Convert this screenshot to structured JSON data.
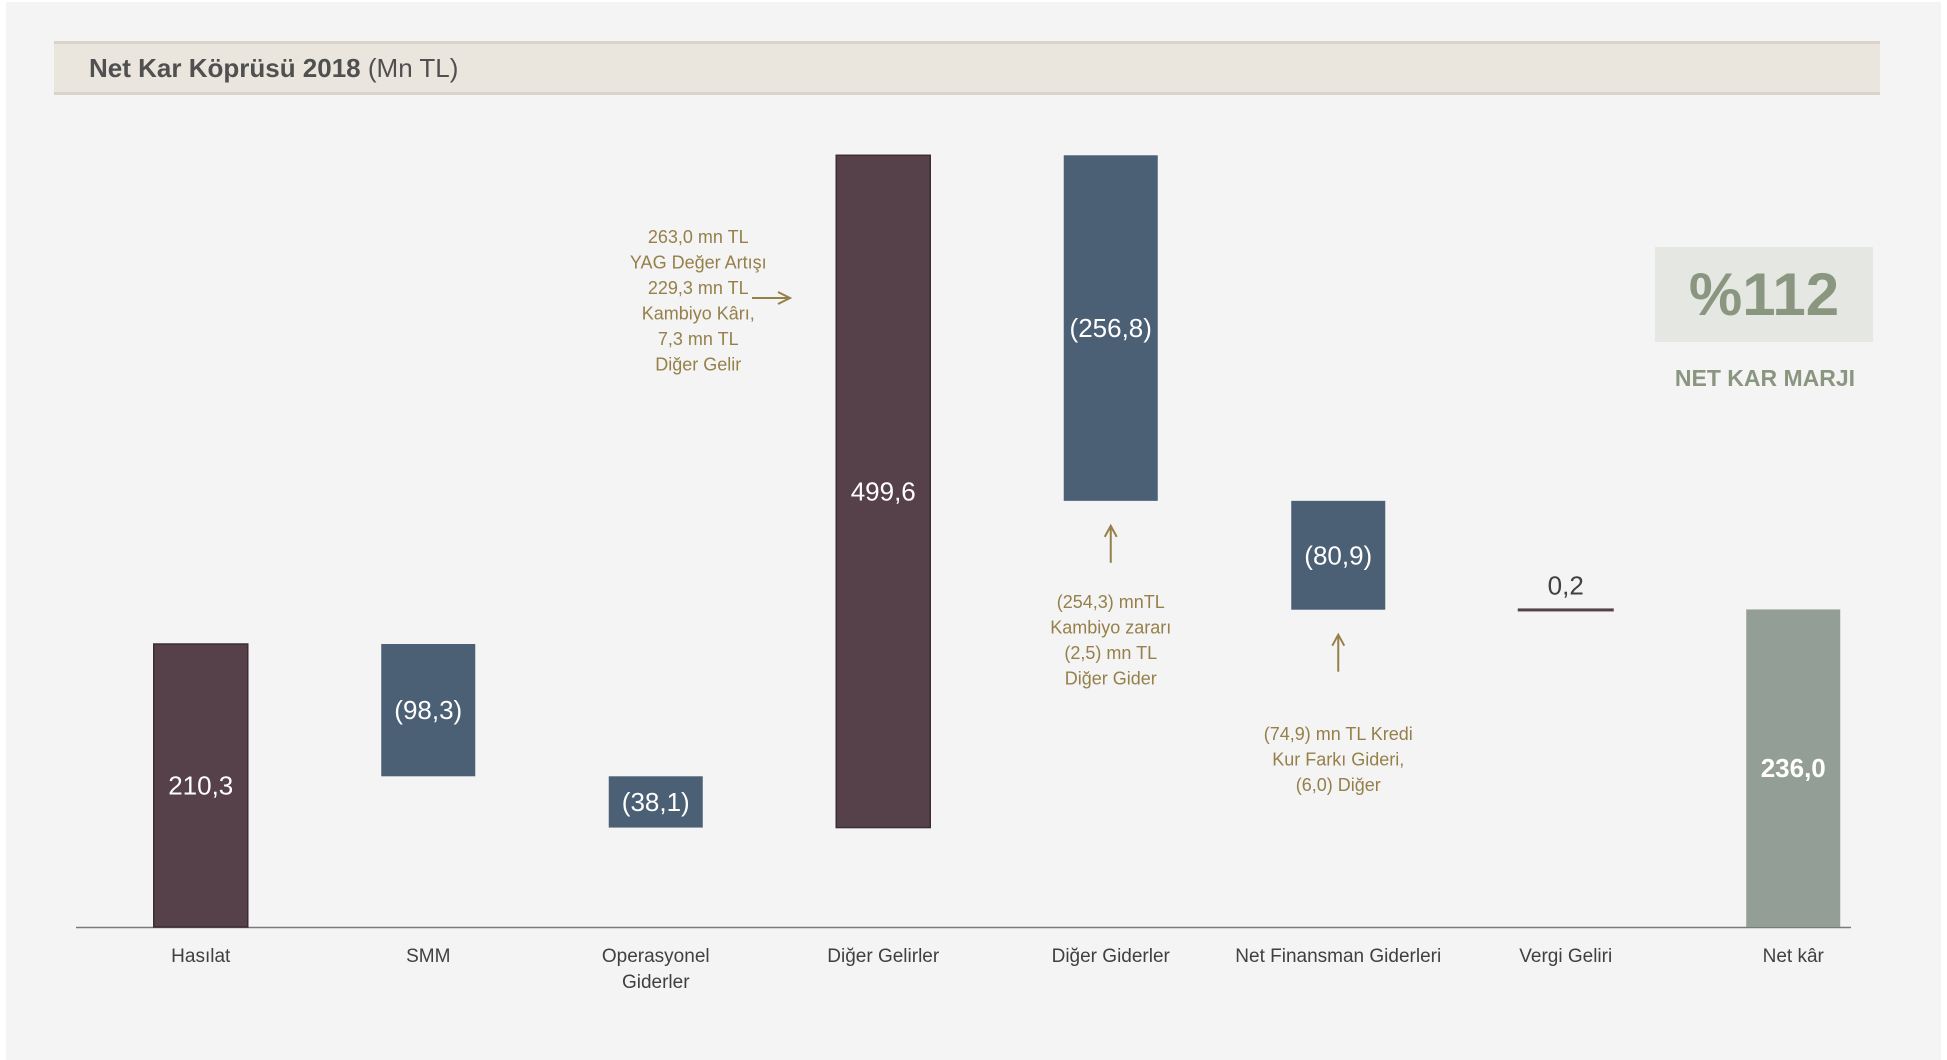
{
  "title": {
    "main": "Net Kar Köprüsü 2018",
    "unit": "(Mn TL)"
  },
  "chart_data": {
    "type": "bar",
    "subtype": "waterfall",
    "categories": [
      "Hasılat",
      "SMM",
      "Operasyonel Giderler",
      "Diğer Gelirler",
      "Diğer Giderler",
      "Net Finansman Giderleri",
      "Vergi Geliri",
      "Net kâr"
    ],
    "values": [
      210.3,
      -98.3,
      -38.1,
      499.6,
      -256.8,
      -80.9,
      0.2,
      236.0
    ],
    "value_labels": [
      "210,3",
      "(98,3)",
      "(38,1)",
      "499,6",
      "(256,8)",
      "(80,9)",
      "0,2",
      "236,0"
    ],
    "measures": [
      "absolute",
      "relative",
      "relative",
      "relative",
      "relative",
      "relative",
      "relative",
      "total"
    ],
    "colors": [
      "#56414a",
      "#4b5f75",
      "#4b5f75",
      "#56414a",
      "#4b5f75",
      "#4b5f75",
      "#56414a",
      "#939f96"
    ],
    "ylim": [
      0,
      570
    ],
    "grid": false,
    "legend": "none",
    "annotations": [
      {
        "lines": [
          "263,0 mn TL",
          "YAG Değer Artışı",
          "229,3 mn TL",
          "Kambiyo Kârı,",
          "7,3 mn TL",
          "Diğer Gelir"
        ],
        "arrow": "right",
        "target": "Diğer Gelirler"
      },
      {
        "lines": [
          "(254,3) mnTL",
          "Kambiyo zararı",
          "(2,5) mn TL",
          "Diğer Gider"
        ],
        "arrow": "up",
        "target": "Diğer Giderler"
      },
      {
        "lines": [
          "(74,9) mn TL Kredi",
          "Kur Farkı Gideri,",
          "(6,0) Diğer"
        ],
        "arrow": "up",
        "target": "Net Finansman Giderleri"
      }
    ]
  },
  "kpi": {
    "value": "%112",
    "label": "NET KAR MARJI"
  }
}
